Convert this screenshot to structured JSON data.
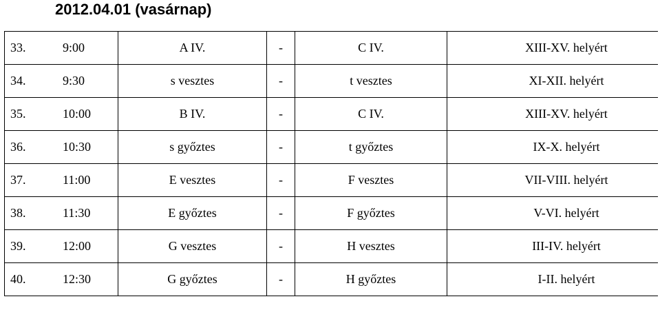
{
  "header": {
    "date": "2012.04.01",
    "day": "(vasárnap)"
  },
  "matches": [
    {
      "num": "33.",
      "time": "9:00",
      "home": "A IV.",
      "sep": "-",
      "away": "C IV.",
      "place": "XIII-XV. helyért"
    },
    {
      "num": "34.",
      "time": "9:30",
      "home": "s vesztes",
      "sep": "-",
      "away": "t vesztes",
      "place": "XI-XII. helyért"
    },
    {
      "num": "35.",
      "time": "10:00",
      "home": "B IV.",
      "sep": "-",
      "away": "C IV.",
      "place": "XIII-XV. helyért"
    },
    {
      "num": "36.",
      "time": "10:30",
      "home": "s győztes",
      "sep": "-",
      "away": "t győztes",
      "place": "IX-X. helyért"
    },
    {
      "num": "37.",
      "time": "11:00",
      "home": "E vesztes",
      "sep": "-",
      "away": "F vesztes",
      "place": "VII-VIII. helyért"
    },
    {
      "num": "38.",
      "time": "11:30",
      "home": "E győztes",
      "sep": "-",
      "away": "F győztes",
      "place": "V-VI. helyért"
    },
    {
      "num": "39.",
      "time": "12:00",
      "home": "G vesztes",
      "sep": "-",
      "away": "H vesztes",
      "place": "III-IV. helyért"
    },
    {
      "num": "40.",
      "time": "12:30",
      "home": "G győztes",
      "sep": "-",
      "away": "H győztes",
      "place": "I-II. helyért"
    }
  ]
}
